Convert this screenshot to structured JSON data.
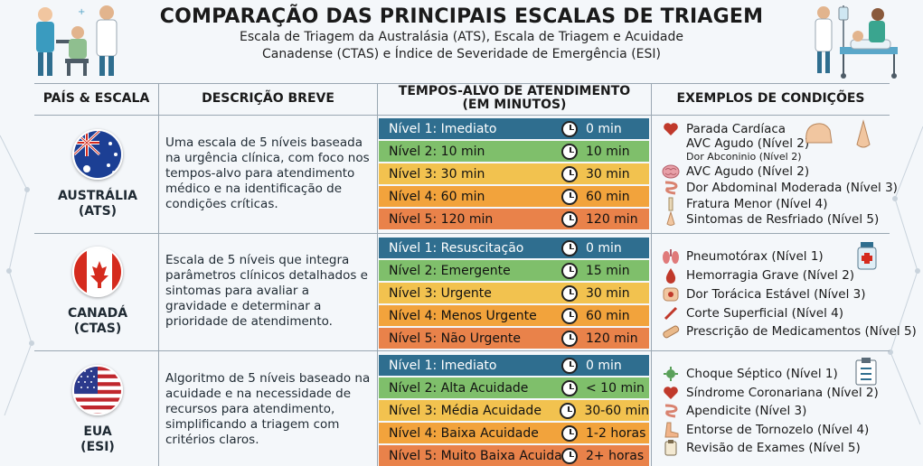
{
  "header": {
    "title": "COMPARAÇÃO DAS PRINCIPAIS ESCALAS DE TRIAGEM",
    "subtitle_line1": "Escala de Triagem da Australásia (ATS), Escala de Triagem e Acuidade",
    "subtitle_line2": "Canadense (CTAS) e Índice de Severidade de Emergência (ESI)"
  },
  "columns": {
    "country": "PAÍS & ESCALA",
    "description": "DESCRIÇÃO BREVE",
    "times_line1": "TEMPOS-ALVO DE ATENDIMENTO",
    "times_line2": "(EM MINUTOS)",
    "examples": "EXEMPLOS DE CONDIÇÕES"
  },
  "colors": {
    "level1": "#2f6e8f",
    "level2": "#7fbf6b",
    "level3": "#f2c24f",
    "level4": "#f2a33c",
    "level5": "#e9824a"
  },
  "rows": [
    {
      "country": "AUSTRÁLIA",
      "scale": "(ATS)",
      "flag": "australia-flag",
      "description": "Uma escala de 5 níveis baseada na urgência clínica, com foco nos tempos-alvo para atendimento médico e na identificação de condições críticas.",
      "levels": [
        {
          "label": "Nível 1: Imediato",
          "time": "0 min"
        },
        {
          "label": "Nível 2: 10 min",
          "time": "10 min"
        },
        {
          "label": "Nível 3: 30 min",
          "time": "30 min"
        },
        {
          "label": "Nível 4: 60 min",
          "time": "60 min"
        },
        {
          "label": "Nível 5: 120 min",
          "time": "120 min"
        }
      ],
      "examples": [
        {
          "text": "Parada Cardíaca",
          "icon": "heart-icon"
        },
        {
          "text": "AVC Agudo (Nível 2)",
          "icon": "brain-icon"
        },
        {
          "text": "Dor Abconinio (Nível 2)",
          "icon": "brain-icon"
        },
        {
          "text": "AVC Agudo (Nível 2)",
          "icon": "brain-icon"
        },
        {
          "text": "Dor Abdominal Moderada (Nível 3)",
          "icon": "intestine-icon"
        },
        {
          "text": "Fratura Menor (Nível 4)",
          "icon": "bone-icon"
        },
        {
          "text": "Sintomas de Resfriado (Nível 5)",
          "icon": "nose-icon"
        }
      ]
    },
    {
      "country": "CANADÁ",
      "scale": "(CTAS)",
      "flag": "canada-flag",
      "description": "Escala de 5 níveis que integra parâmetros clínicos detalhados e sintomas para avaliar a gravidade e determinar a prioridade de atendimento.",
      "levels": [
        {
          "label": "Nível 1: Resuscitação",
          "time": "0 min"
        },
        {
          "label": "Nível 2: Emergente",
          "time": "15 min"
        },
        {
          "label": "Nível 3: Urgente",
          "time": "30 min"
        },
        {
          "label": "Nível 4: Menos Urgente",
          "time": "60 min"
        },
        {
          "label": "Nível 5: Não Urgente",
          "time": "120 min"
        }
      ],
      "examples": [
        {
          "text": "Pneumotórax (Nível 1)",
          "icon": "lungs-icon"
        },
        {
          "text": "Hemorragia Grave (Nível 2)",
          "icon": "blood-drop-icon"
        },
        {
          "text": "Dor Torácica Estável (Nível 3)",
          "icon": "chest-icon"
        },
        {
          "text": "Corte Superficial (Nível 4)",
          "icon": "scalpel-icon"
        },
        {
          "text": "Prescrição de Medicamentos (Nível 5)",
          "icon": "bandage-icon"
        }
      ]
    },
    {
      "country": "EUA",
      "scale": "(ESI)",
      "flag": "usa-flag",
      "description": "Algoritmo de 5 níveis baseado na acuidade e na necessidade de recursos para atendimento, simplificando a triagem com critérios claros.",
      "levels": [
        {
          "label": "Nível 1: Imediato",
          "time": "0 min"
        },
        {
          "label": "Nível 2: Alta Acuidade",
          "time": "< 10 min"
        },
        {
          "label": "Nível 3: Média Acuidade",
          "time": "30-60 min"
        },
        {
          "label": "Nível 4: Baixa Acuidade",
          "time": "1-2 horas"
        },
        {
          "label": "Nível 5: Muito Baixa Acuidade",
          "time": "2+ horas"
        }
      ],
      "examples": [
        {
          "text": "Choque Séptico (Nível 1)",
          "icon": "virus-icon"
        },
        {
          "text": "Síndrome Coronariana (Nível 2)",
          "icon": "heart-icon"
        },
        {
          "text": "Apendicite (Nível 3)",
          "icon": "intestine-icon"
        },
        {
          "text": "Entorse de Tornozelo (Nível 4)",
          "icon": "foot-icon"
        },
        {
          "text": "Revisão de Exames (Nível 5)",
          "icon": "clipboard-icon"
        }
      ]
    }
  ]
}
